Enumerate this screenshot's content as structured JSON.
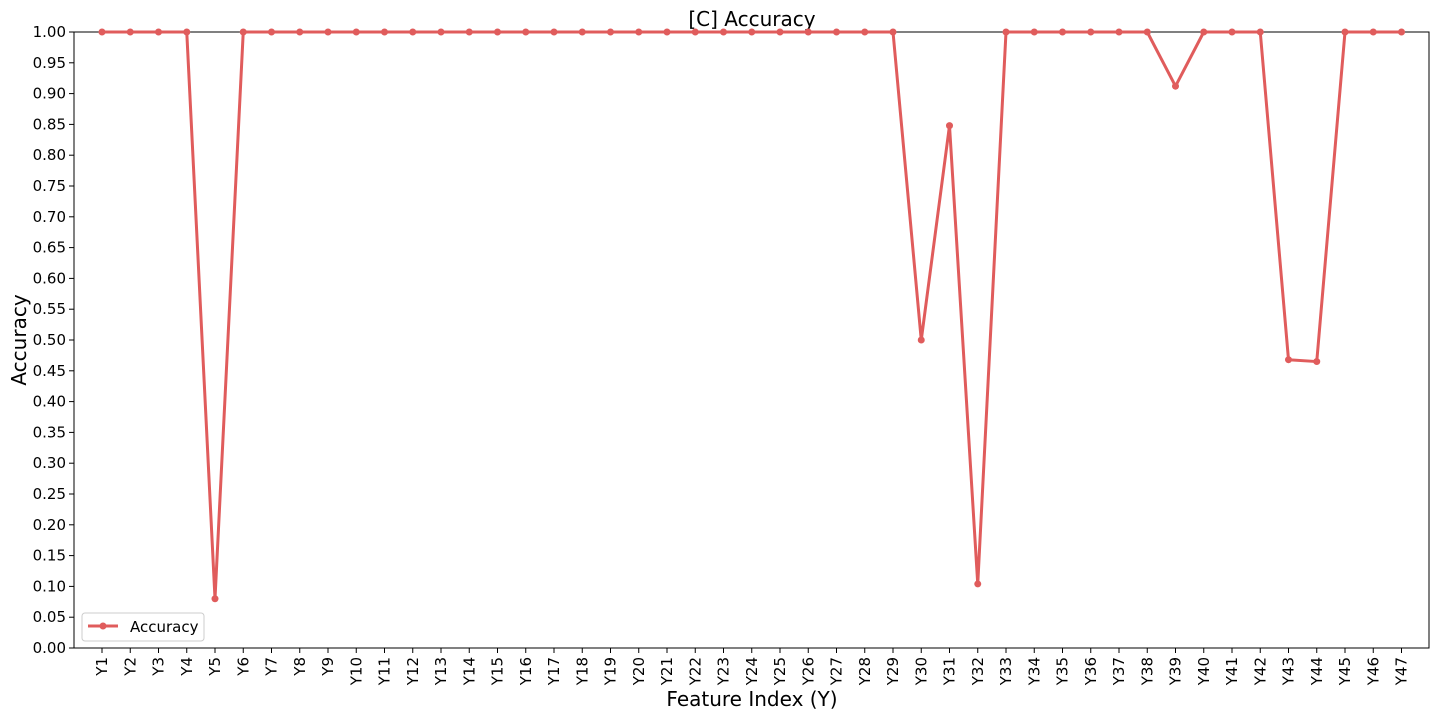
{
  "chart_data": {
    "type": "line",
    "title": "[C] Accuracy",
    "xlabel": "Feature Index (Y)",
    "ylabel": "Accuracy",
    "ylim": [
      0,
      1
    ],
    "yticks": [
      "0.00",
      "0.05",
      "0.10",
      "0.15",
      "0.20",
      "0.25",
      "0.30",
      "0.35",
      "0.40",
      "0.45",
      "0.50",
      "0.55",
      "0.60",
      "0.65",
      "0.70",
      "0.75",
      "0.80",
      "0.85",
      "0.90",
      "0.95",
      "1.00"
    ],
    "grid": false,
    "legend_position": "lower-left",
    "categories": [
      "Y1",
      "Y2",
      "Y3",
      "Y4",
      "Y5",
      "Y6",
      "Y7",
      "Y8",
      "Y9",
      "Y10",
      "Y11",
      "Y12",
      "Y13",
      "Y14",
      "Y15",
      "Y16",
      "Y17",
      "Y18",
      "Y19",
      "Y20",
      "Y21",
      "Y22",
      "Y23",
      "Y24",
      "Y25",
      "Y26",
      "Y27",
      "Y28",
      "Y29",
      "Y30",
      "Y31",
      "Y32",
      "Y33",
      "Y34",
      "Y35",
      "Y36",
      "Y37",
      "Y38",
      "Y39",
      "Y40",
      "Y41",
      "Y42",
      "Y43",
      "Y44",
      "Y45",
      "Y46",
      "Y47"
    ],
    "series": [
      {
        "name": "Accuracy",
        "color": "#e05c5c",
        "values": [
          1.0,
          1.0,
          1.0,
          1.0,
          0.08,
          1.0,
          1.0,
          1.0,
          1.0,
          1.0,
          1.0,
          1.0,
          1.0,
          1.0,
          1.0,
          1.0,
          1.0,
          1.0,
          1.0,
          1.0,
          1.0,
          1.0,
          1.0,
          1.0,
          1.0,
          1.0,
          1.0,
          1.0,
          1.0,
          0.5,
          0.848,
          0.104,
          1.0,
          1.0,
          1.0,
          1.0,
          1.0,
          1.0,
          0.912,
          1.0,
          1.0,
          1.0,
          0.468,
          0.465,
          1.0,
          1.0,
          1.0
        ]
      }
    ]
  }
}
